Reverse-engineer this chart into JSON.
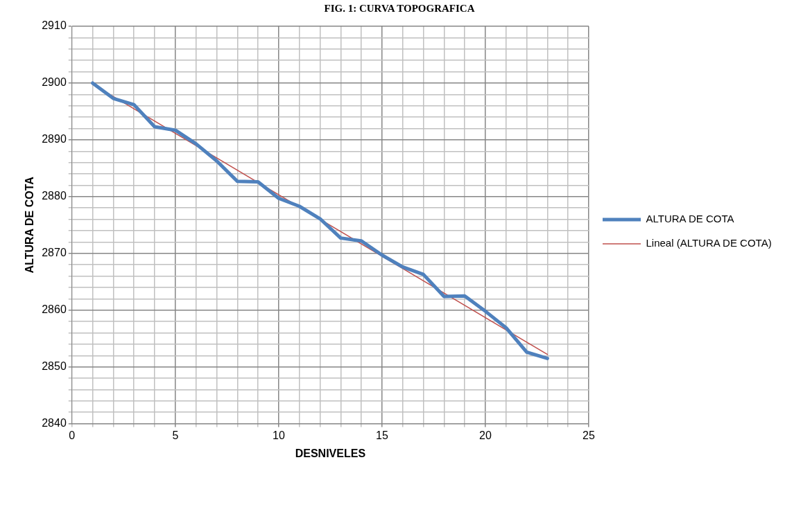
{
  "chart_data": {
    "type": "line",
    "title": "FIG. 1: CURVA TOPOGRAFICA",
    "xlabel": "DESNIVELES",
    "ylabel": "ALTURA DE COTA",
    "xlim": [
      0,
      25
    ],
    "ylim": [
      2840,
      2910
    ],
    "xticks": [
      0,
      {
        "value": 1,
        "label": null
      },
      {
        "value": 2,
        "label": null
      },
      {
        "value": 3,
        "label": null
      },
      {
        "value": 4,
        "label": null
      },
      5,
      {
        "value": 6,
        "label": null
      },
      {
        "value": 7,
        "label": null
      },
      {
        "value": 8,
        "label": null
      },
      {
        "value": 9,
        "label": null
      },
      10,
      {
        "value": 11,
        "label": null
      },
      {
        "value": 12,
        "label": null
      },
      {
        "value": 13,
        "label": null
      },
      {
        "value": 14,
        "label": null
      },
      15,
      {
        "value": 16,
        "label": null
      },
      {
        "value": 17,
        "label": null
      },
      {
        "value": 18,
        "label": null
      },
      {
        "value": 19,
        "label": null
      },
      20,
      {
        "value": 21,
        "label": null
      },
      {
        "value": 22,
        "label": null
      },
      {
        "value": 23,
        "label": null
      },
      {
        "value": 24,
        "label": null
      },
      25
    ],
    "yticks": [
      2840,
      {
        "value": 2842,
        "label": null
      },
      {
        "value": 2844,
        "label": null
      },
      {
        "value": 2846,
        "label": null
      },
      {
        "value": 2848,
        "label": null
      },
      2850,
      {
        "value": 2852,
        "label": null
      },
      {
        "value": 2854,
        "label": null
      },
      {
        "value": 2856,
        "label": null
      },
      {
        "value": 2858,
        "label": null
      },
      2860,
      {
        "value": 2862,
        "label": null
      },
      {
        "value": 2864,
        "label": null
      },
      {
        "value": 2866,
        "label": null
      },
      {
        "value": 2868,
        "label": null
      },
      2870,
      {
        "value": 2872,
        "label": null
      },
      {
        "value": 2874,
        "label": null
      },
      {
        "value": 2876,
        "label": null
      },
      {
        "value": 2878,
        "label": null
      },
      2880,
      {
        "value": 2882,
        "label": null
      },
      {
        "value": 2884,
        "label": null
      },
      {
        "value": 2886,
        "label": null
      },
      {
        "value": 2888,
        "label": null
      },
      2890,
      {
        "value": 2892,
        "label": null
      },
      {
        "value": 2894,
        "label": null
      },
      {
        "value": 2896,
        "label": null
      },
      {
        "value": 2898,
        "label": null
      },
      2900,
      {
        "value": 2902,
        "label": null
      },
      {
        "value": 2904,
        "label": null
      },
      {
        "value": 2906,
        "label": null
      },
      {
        "value": 2908,
        "label": null
      },
      2910
    ],
    "grid": true,
    "legend": "right",
    "marker": "none",
    "series": [
      {
        "name": "ALTURA DE COTA",
        "color": "#4f81bd",
        "x": [
          1,
          2,
          3,
          4,
          5,
          6,
          7,
          8,
          9,
          10,
          11,
          12,
          13,
          14,
          15,
          16,
          17,
          18,
          19,
          20,
          21,
          22,
          23
        ],
        "values": [
          2900,
          2897.3,
          2896.2,
          2892.3,
          2891.7,
          2889.3,
          2886.3,
          2882.7,
          2882.6,
          2879.7,
          2878.3,
          2876.1,
          2872.7,
          2872.2,
          2869.7,
          2867.6,
          2866.3,
          2862.4,
          2862.5,
          2859.8,
          2856.9,
          2852.6,
          2851.5
        ]
      },
      {
        "name": "Lineal (ALTURA DE COTA)",
        "color": "#c0504d",
        "type": "line",
        "x": [
          1,
          23
        ],
        "values": [
          2899.8,
          2852.2
        ]
      }
    ]
  }
}
